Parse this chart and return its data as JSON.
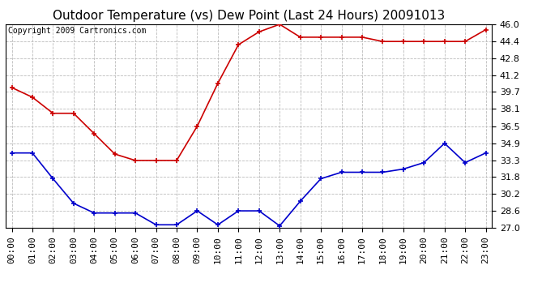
{
  "title": "Outdoor Temperature (vs) Dew Point (Last 24 Hours) 20091013",
  "copyright_text": "Copyright 2009 Cartronics.com",
  "hours": [
    0,
    1,
    2,
    3,
    4,
    5,
    6,
    7,
    8,
    9,
    10,
    11,
    12,
    13,
    14,
    15,
    16,
    17,
    18,
    19,
    20,
    21,
    22,
    23
  ],
  "temp_red": [
    40.1,
    39.2,
    37.7,
    37.7,
    35.8,
    33.9,
    33.3,
    33.3,
    33.3,
    36.5,
    40.5,
    44.1,
    45.3,
    46.0,
    44.8,
    44.8,
    44.8,
    44.8,
    44.4,
    44.4,
    44.4,
    44.4,
    44.4,
    45.5
  ],
  "dew_blue": [
    34.0,
    34.0,
    31.6,
    29.3,
    28.4,
    28.4,
    28.4,
    27.3,
    27.3,
    28.6,
    27.3,
    28.6,
    28.6,
    27.2,
    29.5,
    31.6,
    32.2,
    32.2,
    32.2,
    32.5,
    33.1,
    34.9,
    33.1,
    34.0
  ],
  "ylim_min": 27.0,
  "ylim_max": 46.0,
  "yticks": [
    27.0,
    28.6,
    30.2,
    31.8,
    33.3,
    34.9,
    36.5,
    38.1,
    39.7,
    41.2,
    42.8,
    44.4,
    46.0
  ],
  "background_color": "#ffffff",
  "plot_bg_color": "#ffffff",
  "grid_color": "#bbbbbb",
  "red_color": "#cc0000",
  "blue_color": "#0000cc",
  "title_fontsize": 11,
  "tick_fontsize": 8,
  "copyright_fontsize": 7
}
